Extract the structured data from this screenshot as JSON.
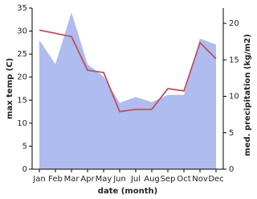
{
  "chart_data": {
    "type": "line",
    "x_label": "date (month)",
    "y_label": "max temp (C)",
    "y2_label": "med. precipitation (kg/m2)",
    "categories": [
      "Jan",
      "Feb",
      "Mar",
      "Apr",
      "May",
      "Jun",
      "Jul",
      "Aug",
      "Sep",
      "Oct",
      "Nov",
      "Dec"
    ],
    "series": [
      {
        "name": "med. precipitation (kg/m2)",
        "style": "area",
        "axis": "y2",
        "color": "#aebcf0",
        "values": [
          17.7,
          14.4,
          21.5,
          14.4,
          12.7,
          9.1,
          9.9,
          9.2,
          10.2,
          10.2,
          17.9,
          17.1
        ]
      },
      {
        "name": "max temp (C)",
        "style": "line",
        "color": "#c0505e",
        "values": [
          30.2,
          29.5,
          28.8,
          21.5,
          21,
          12.5,
          13,
          13,
          17.5,
          17,
          27.5,
          24
        ]
      }
    ],
    "ylim": [
      0,
      35
    ],
    "yticks": [
      0,
      5,
      10,
      15,
      20,
      25,
      30,
      35
    ],
    "y2lim": [
      0,
      22.1
    ],
    "y2ticks": [
      0,
      5,
      10,
      15,
      20
    ]
  }
}
